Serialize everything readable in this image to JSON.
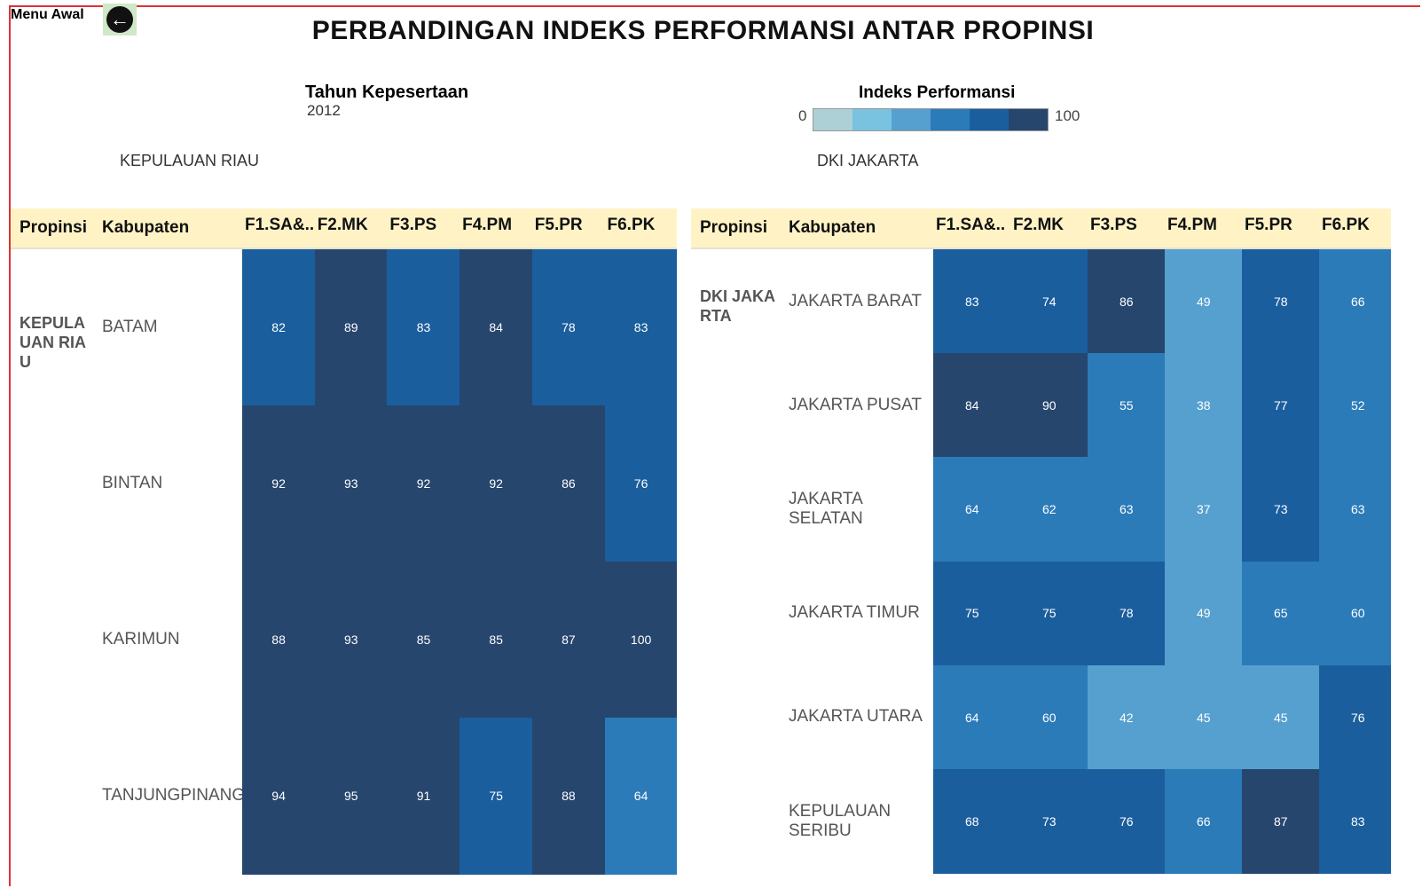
{
  "header": {
    "menu": "Menu Awal",
    "title": "PERBANDINGAN INDEKS PERFORMANSI ANTAR PROPINSI"
  },
  "filter": {
    "label": "Tahun Kepesertaan",
    "value": "2012"
  },
  "legend": {
    "title": "Indeks Performansi",
    "min": 0,
    "max": 100,
    "colors": [
      "#acd0d6",
      "#79c2e0",
      "#56a0cf",
      "#2b7bb9",
      "#1b5e9e",
      "#26466e"
    ]
  },
  "tables": [
    {
      "province": "KEPULAUAN RIAU",
      "columns": [
        "Propinsi",
        "Kabupaten",
        "F1.SA&..",
        "F2.MK",
        "F3.PS",
        "F4.PM",
        "F5.PR",
        "F6.PK"
      ],
      "rows": [
        {
          "kabupaten": "BATAM",
          "values": [
            82,
            89,
            83,
            84,
            78,
            83
          ]
        },
        {
          "kabupaten": "BINTAN",
          "values": [
            92,
            93,
            92,
            92,
            86,
            76
          ]
        },
        {
          "kabupaten": "KARIMUN",
          "values": [
            88,
            93,
            85,
            85,
            87,
            100
          ]
        },
        {
          "kabupaten": "TANJUNGPINANG",
          "values": [
            94,
            95,
            91,
            75,
            88,
            64
          ]
        }
      ]
    },
    {
      "province": "DKI JAKARTA",
      "columns": [
        "Propinsi",
        "Kabupaten",
        "F1.SA&..",
        "F2.MK",
        "F3.PS",
        "F4.PM",
        "F5.PR",
        "F6.PK"
      ],
      "rows": [
        {
          "kabupaten": "JAKARTA BARAT",
          "values": [
            83,
            74,
            86,
            49,
            78,
            66
          ]
        },
        {
          "kabupaten": "JAKARTA PUSAT",
          "values": [
            84,
            90,
            55,
            38,
            77,
            52
          ]
        },
        {
          "kabupaten": "JAKARTA SELATAN",
          "values": [
            64,
            62,
            63,
            37,
            73,
            63
          ]
        },
        {
          "kabupaten": "JAKARTA TIMUR",
          "values": [
            75,
            75,
            78,
            49,
            65,
            60
          ]
        },
        {
          "kabupaten": "JAKARTA UTARA",
          "values": [
            64,
            60,
            42,
            45,
            45,
            76
          ]
        },
        {
          "kabupaten": "KEPULAUAN SERIBU",
          "values": [
            68,
            73,
            76,
            66,
            87,
            83
          ]
        }
      ]
    }
  ]
}
